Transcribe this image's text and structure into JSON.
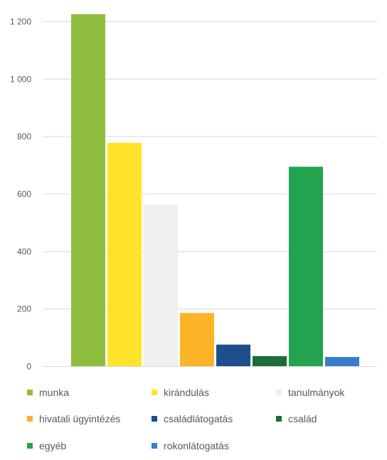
{
  "chart_data": {
    "type": "bar",
    "categories": [
      "munka",
      "kirándulás",
      "tanulmányok",
      "hivatali ügyintézés",
      "családlátogatás",
      "család",
      "egyéb",
      "rokonlátogatás"
    ],
    "values": [
      1225,
      777,
      562,
      185,
      75,
      35,
      694,
      32
    ],
    "colors": [
      "#8fbe3f",
      "#ffe32b",
      "#efefef",
      "#fbb427",
      "#1f4e8c",
      "#1b6d3a",
      "#22a34f",
      "#3a7cc9"
    ],
    "ylim": [
      0,
      1250
    ],
    "yticks": [
      0,
      200,
      400,
      600,
      800,
      1000,
      1200
    ],
    "ytick_labels": [
      "0",
      "200",
      "400",
      "600",
      "800",
      "1 000",
      "1 200"
    ],
    "grid": true,
    "legend_position": "bottom"
  }
}
